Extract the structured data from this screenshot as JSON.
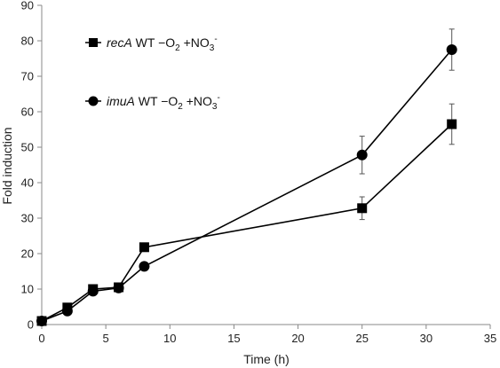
{
  "chart_data": {
    "type": "line",
    "title": "",
    "xlabel": "Time (h)",
    "ylabel": "Fold induction",
    "xlim": [
      0,
      35
    ],
    "ylim": [
      0,
      90
    ],
    "xticks": [
      0,
      5,
      10,
      15,
      20,
      25,
      30,
      35
    ],
    "yticks": [
      0,
      10,
      20,
      30,
      40,
      50,
      60,
      70,
      80,
      90
    ],
    "grid": false,
    "legend_position": "top-left",
    "series": [
      {
        "gene": "recA",
        "condition": "WT −O2 +NO3-",
        "name": "recA WT −O2 +NO3-",
        "marker": "square",
        "color": "#000000",
        "x": [
          0,
          2,
          4,
          6,
          8,
          25,
          32
        ],
        "y": [
          1,
          4.8,
          10,
          10.5,
          21.8,
          32.8,
          56.5
        ],
        "error": [
          0,
          0.3,
          0.4,
          1.2,
          0.4,
          3.2,
          5.7
        ]
      },
      {
        "gene": "imuA",
        "condition": "WT −O2 +NO3-",
        "name": "imuA WT −O2 +NO3-",
        "marker": "circle",
        "color": "#000000",
        "x": [
          0,
          2,
          4,
          6,
          8,
          25,
          32
        ],
        "y": [
          1,
          3.8,
          9.4,
          10.3,
          16.4,
          47.8,
          77.5
        ],
        "error": [
          0,
          0.3,
          0.4,
          0.8,
          0.4,
          5.3,
          5.8
        ]
      }
    ]
  }
}
